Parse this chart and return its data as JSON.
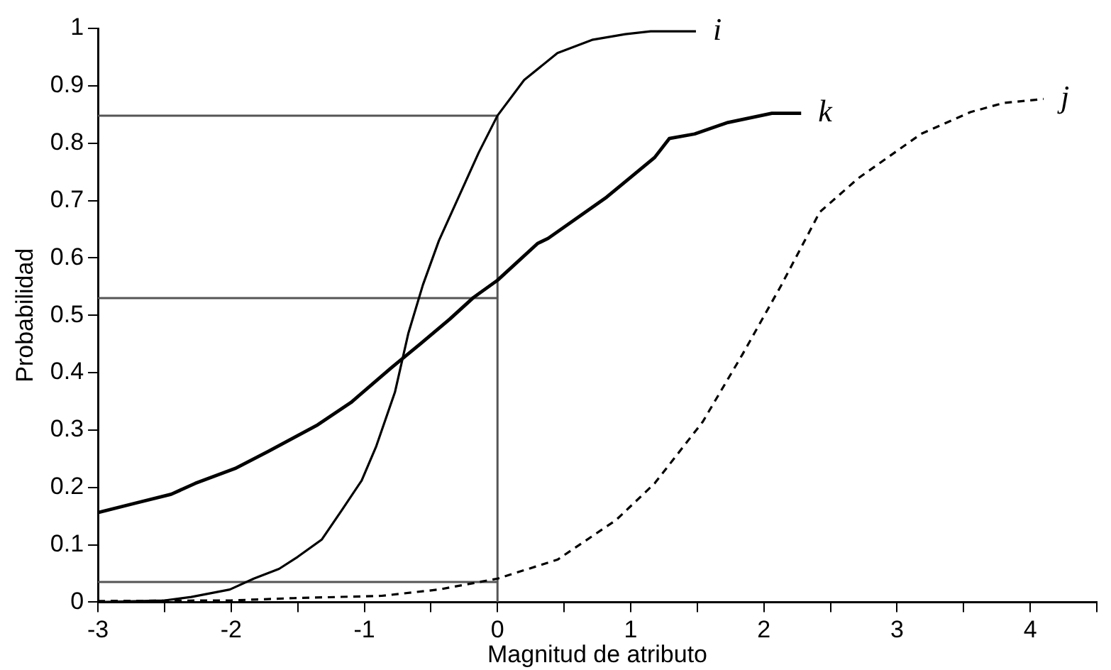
{
  "chart_data": {
    "type": "line",
    "xlabel": "Magnitud de atributo",
    "ylabel": "Probabilidad",
    "xlim": [
      -3,
      4.5
    ],
    "ylim": [
      0,
      1
    ],
    "xticks": [
      -3,
      {
        "value": -2.5,
        "label": null
      },
      -2,
      {
        "value": -1.5,
        "label": null
      },
      -1,
      {
        "value": -0.5,
        "label": null
      },
      0,
      {
        "value": 0.5,
        "label": null
      },
      1,
      {
        "value": 1.5,
        "label": null
      },
      2,
      {
        "value": 2.5,
        "label": null
      },
      3,
      {
        "value": 3.5,
        "label": null
      },
      4,
      {
        "value": 4.5,
        "label": null
      }
    ],
    "yticks": [
      0,
      0.1,
      0.2,
      0.3,
      0.4,
      0.5,
      0.6,
      0.7,
      0.8,
      0.9,
      1
    ],
    "grid": false,
    "legend": false,
    "marker": "none",
    "series": [
      {
        "name": "i",
        "color": "#000000",
        "line_style": "solid",
        "x": [
          -3,
          -2.5,
          -2.3,
          -2.01,
          -1.83,
          -1.64,
          -1.5,
          -1.32,
          -1.17,
          -1.02,
          -0.91,
          -0.77,
          -0.67,
          -0.56,
          -0.44,
          -0.29,
          -0.14,
          0,
          0.2,
          0.45,
          0.71,
          0.96,
          1.15,
          1.49
        ],
        "values": [
          0,
          0.003,
          0.009,
          0.022,
          0.041,
          0.058,
          0.079,
          0.109,
          0.16,
          0.212,
          0.272,
          0.366,
          0.468,
          0.553,
          0.63,
          0.707,
          0.784,
          0.848,
          0.91,
          0.957,
          0.98,
          0.99,
          0.995,
          0.995
        ]
      },
      {
        "name": "k",
        "color": "#000000",
        "line_style": "solid",
        "x": [
          -3,
          -2.71,
          -2.45,
          -2.27,
          -1.97,
          -1.72,
          -1.35,
          -1.1,
          -0.8,
          -0.58,
          -0.36,
          -0.18,
          0,
          0.3,
          0.38,
          0.82,
          1.18,
          1.29,
          1.48,
          1.73,
          2.06,
          2.28
        ],
        "values": [
          0.156,
          0.173,
          0.188,
          0.207,
          0.233,
          0.263,
          0.309,
          0.348,
          0.408,
          0.45,
          0.493,
          0.531,
          0.561,
          0.625,
          0.634,
          0.706,
          0.775,
          0.808,
          0.816,
          0.836,
          0.852,
          0.852
        ]
      },
      {
        "name": "j",
        "color": "#000000",
        "line_style": "dashed",
        "x": [
          -3,
          -2,
          -1.53,
          -0.87,
          -0.44,
          0,
          0.45,
          0.89,
          1.18,
          1.54,
          1.84,
          2.13,
          2.42,
          2.71,
          3.18,
          3.55,
          3.8,
          4.1
        ],
        "values": [
          0.002,
          0.003,
          0.007,
          0.011,
          0.022,
          0.041,
          0.074,
          0.143,
          0.207,
          0.314,
          0.432,
          0.552,
          0.68,
          0.739,
          0.816,
          0.854,
          0.87,
          0.877
        ]
      },
      {
        "color": "#555555",
        "line_style": "solid",
        "x": [
          -3,
          0
        ],
        "values": [
          0.848,
          0.848
        ]
      },
      {
        "color": "#555555",
        "line_style": "solid",
        "x": [
          -3,
          0
        ],
        "values": [
          0.53,
          0.53
        ]
      },
      {
        "color": "#555555",
        "line_style": "solid",
        "x": [
          -3,
          0
        ],
        "values": [
          0.035,
          0.035
        ]
      },
      {
        "color": "#555555",
        "line_style": "solid",
        "x": [
          0,
          0
        ],
        "values": [
          0,
          0.848
        ]
      }
    ]
  }
}
